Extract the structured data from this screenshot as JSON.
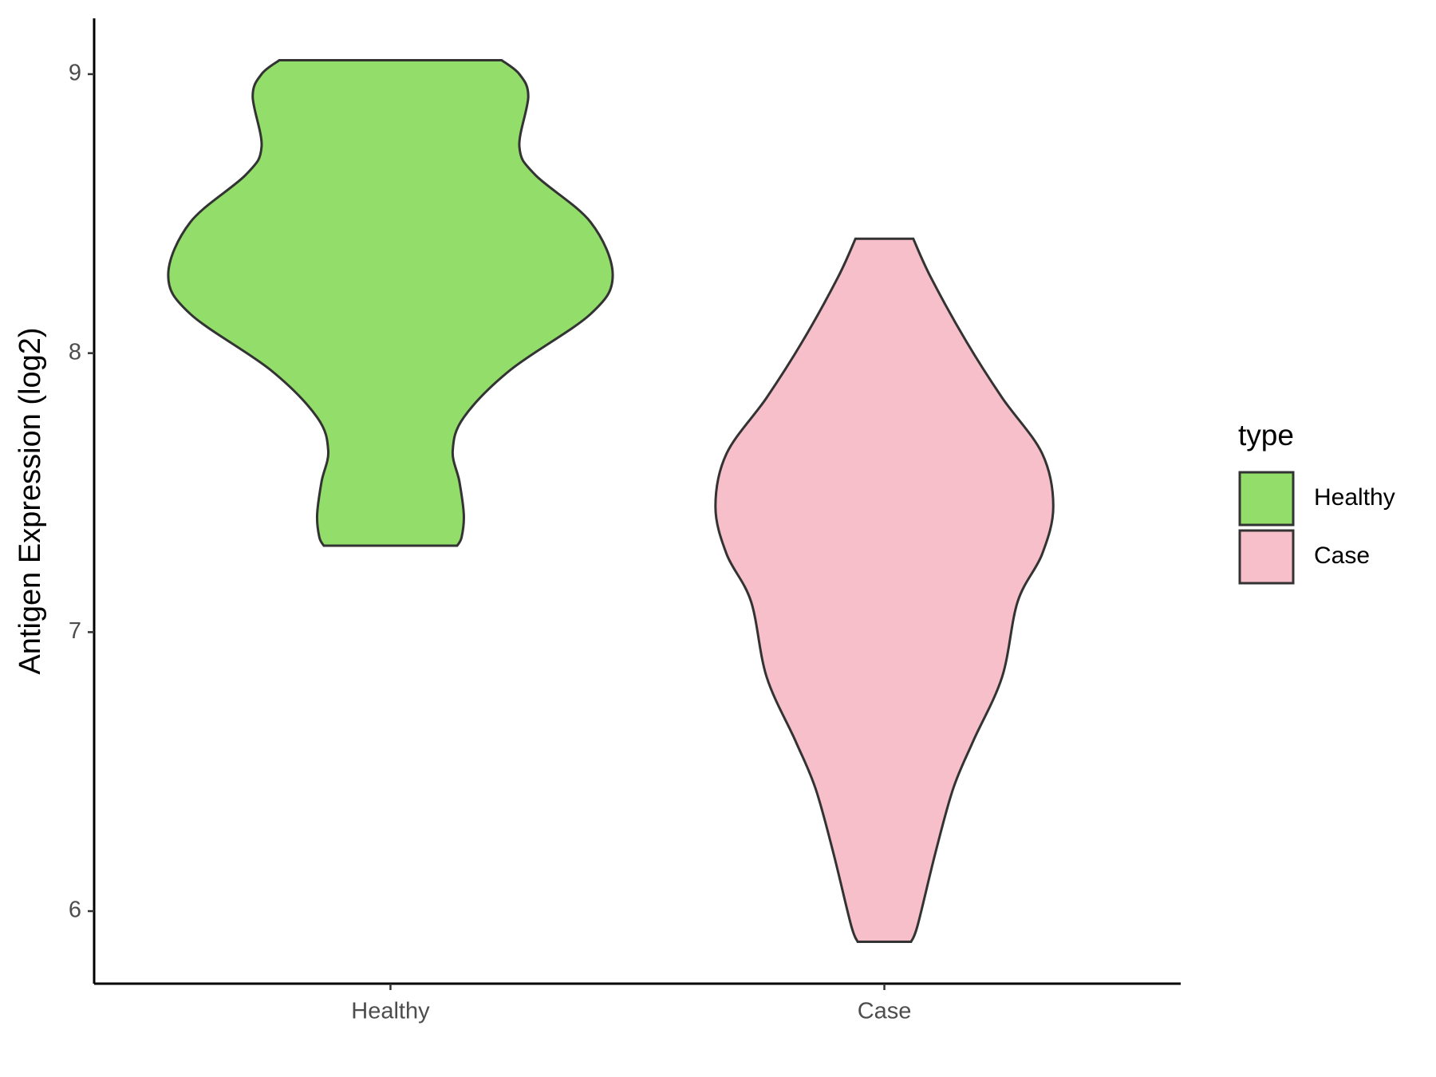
{
  "chart_data": {
    "type": "violin",
    "y_label": "Antigen Expression (log2)",
    "categories": [
      "Healthy",
      "Case"
    ],
    "series": [
      {
        "name": "Healthy",
        "color": "#93dd6a",
        "y": [
          9.05,
          9.0,
          8.92,
          8.74,
          8.64,
          8.47,
          8.28,
          8.14,
          7.94,
          7.77,
          7.65,
          7.54,
          7.42,
          7.34,
          7.31
        ],
        "density": [
          0.5,
          0.58,
          0.62,
          0.58,
          0.65,
          0.9,
          1.0,
          0.9,
          0.54,
          0.33,
          0.28,
          0.31,
          0.33,
          0.32,
          0.3
        ]
      },
      {
        "name": "Case",
        "color": "#f7bfca",
        "y": [
          8.41,
          8.27,
          8.04,
          7.84,
          7.64,
          7.45,
          7.28,
          7.11,
          6.84,
          6.61,
          6.44,
          6.21,
          5.95,
          5.89
        ],
        "density": [
          0.13,
          0.21,
          0.37,
          0.53,
          0.71,
          0.76,
          0.71,
          0.6,
          0.53,
          0.4,
          0.31,
          0.23,
          0.15,
          0.12
        ]
      }
    ],
    "ylim": [
      5.74,
      9.2
    ],
    "yticks": [
      6,
      7,
      8,
      9
    ],
    "legend_title": "type",
    "legend": "right"
  }
}
